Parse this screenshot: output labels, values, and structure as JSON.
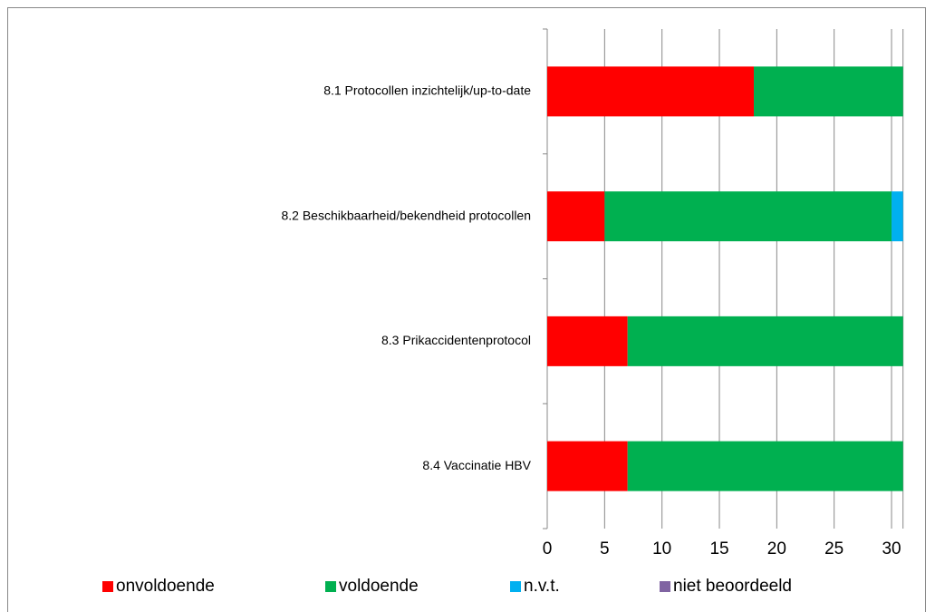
{
  "chart_data": {
    "type": "stacked-barh",
    "categories": [
      "8.1 Protocollen inzichtelijk/up-to-date",
      "8.2 Beschikbaarheid/bekendheid protocollen",
      "8.3 Prikaccidentenprotocol",
      "8.4 Vaccinatie HBV"
    ],
    "series": [
      {
        "name": "onvoldoende",
        "color": "#ff0000",
        "values": [
          18,
          5,
          7,
          7
        ]
      },
      {
        "name": "voldoende",
        "color": "#00b050",
        "values": [
          13,
          25,
          24,
          24
        ]
      },
      {
        "name": "n.v.t.",
        "color": "#00b0f0",
        "values": [
          0,
          1,
          0,
          0
        ]
      },
      {
        "name": "niet beoordeeld",
        "color": "#8064a2",
        "values": [
          0,
          0,
          0,
          0
        ]
      }
    ],
    "xlim": [
      0,
      31
    ],
    "xticks": [
      0,
      5,
      10,
      15,
      20,
      25,
      30
    ],
    "grid": true,
    "legend": "bottom"
  }
}
